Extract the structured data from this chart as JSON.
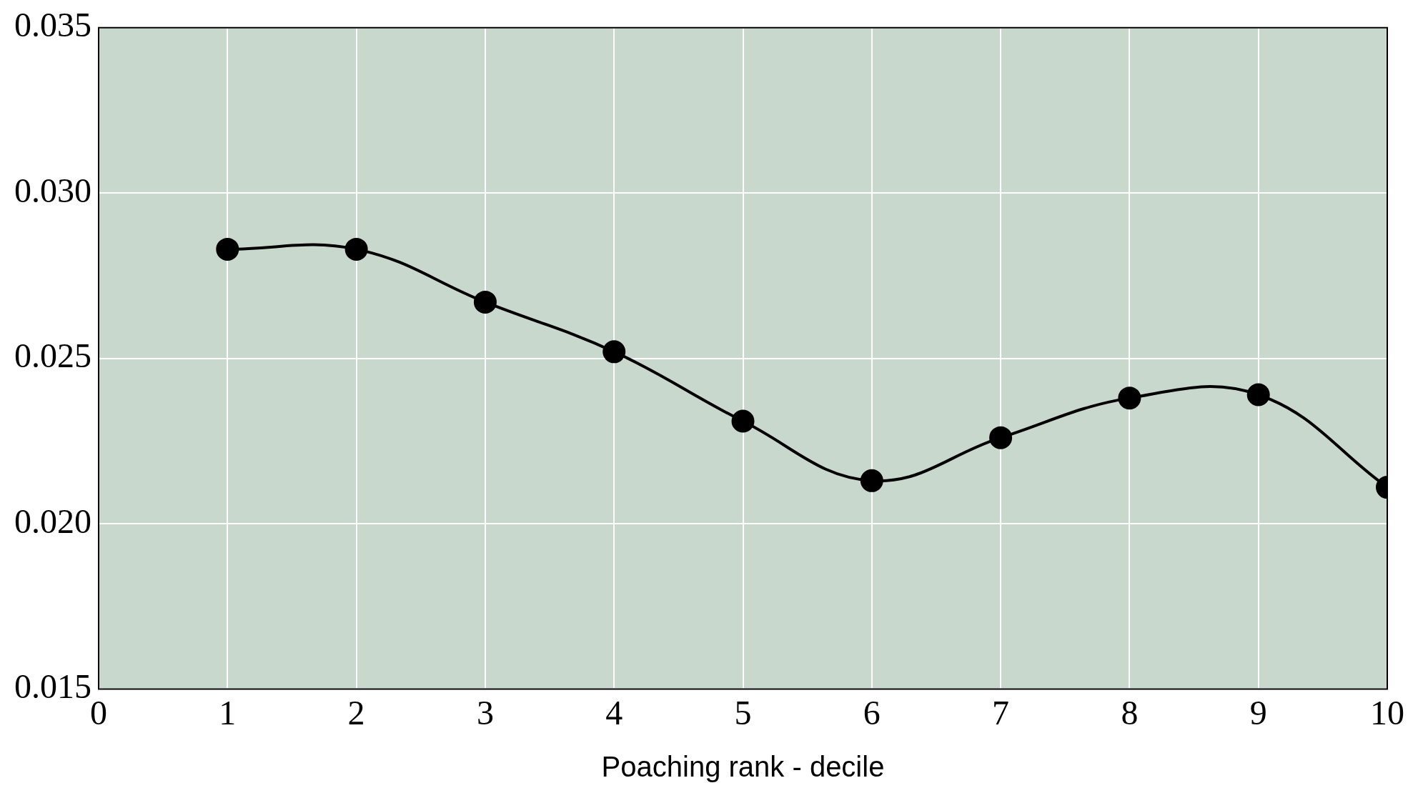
{
  "chart_data": {
    "type": "line",
    "xlabel": "Poaching rank - decile",
    "x": [
      1,
      2,
      3,
      4,
      5,
      6,
      7,
      8,
      9,
      10
    ],
    "series": [
      {
        "color": "#000000",
        "values": [
          0.0283,
          0.0283,
          0.0267,
          0.0252,
          0.0231,
          0.0213,
          0.0226,
          0.0238,
          0.0239,
          0.0211
        ]
      }
    ],
    "xlim": [
      0,
      10
    ],
    "xticks": [
      0,
      1,
      2,
      3,
      4,
      5,
      6,
      7,
      8,
      9,
      10
    ],
    "ylim": [
      0.015,
      0.035
    ],
    "yticks": [
      {
        "value": 0.015,
        "label": "0.015"
      },
      {
        "value": 0.02,
        "label": "0.020"
      },
      {
        "value": 0.025,
        "label": "0.025"
      },
      {
        "value": 0.03,
        "label": "0.030"
      },
      {
        "value": 0.035,
        "label": "0.035"
      }
    ],
    "grid": true,
    "legend": false,
    "marker": "circle",
    "line_style": "solid"
  }
}
